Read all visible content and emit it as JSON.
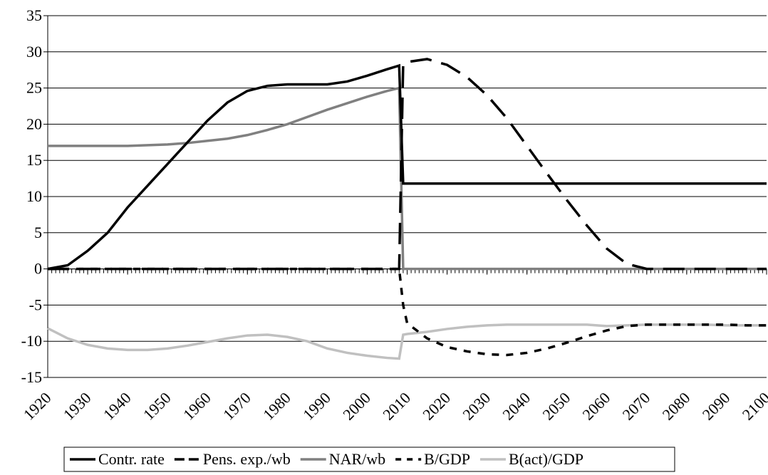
{
  "chart_data": {
    "type": "line",
    "x": [
      1920,
      1925,
      1930,
      1935,
      1940,
      1945,
      1950,
      1955,
      1960,
      1965,
      1970,
      1975,
      1980,
      1985,
      1990,
      1995,
      2000,
      2005,
      2008,
      2009,
      2010,
      2015,
      2020,
      2025,
      2030,
      2035,
      2040,
      2045,
      2050,
      2055,
      2060,
      2065,
      2070,
      2075,
      2080,
      2085,
      2090,
      2095,
      2100
    ],
    "series": [
      {
        "name": "Contr. rate",
        "color": "#000000",
        "line_style": "solid",
        "values": [
          0,
          0.5,
          2.5,
          5,
          8.5,
          11.5,
          14.5,
          17.5,
          20.5,
          23,
          24.6,
          25.3,
          25.5,
          25.5,
          25.5,
          25.9,
          26.7,
          27.6,
          28.1,
          11.8,
          11.8,
          11.8,
          11.8,
          11.8,
          11.8,
          11.8,
          11.8,
          11.8,
          11.8,
          11.8,
          11.8,
          11.8,
          11.8,
          11.8,
          11.8,
          11.8,
          11.8,
          11.8,
          11.8
        ]
      },
      {
        "name": "Pens. exp./wb",
        "color": "#000000",
        "line_style": "long-dash",
        "values": [
          0,
          0,
          0,
          0,
          0,
          0,
          0,
          0,
          0,
          0,
          0,
          0,
          0,
          0,
          0,
          0,
          0,
          0,
          0,
          28.3,
          28.6,
          29,
          28.2,
          26.5,
          24,
          20.8,
          17,
          13.2,
          9.5,
          6,
          2.8,
          0.7,
          0,
          0,
          0,
          0,
          0,
          0,
          0
        ]
      },
      {
        "name": "NAR/wb",
        "color": "#808080",
        "line_style": "solid",
        "values": [
          17,
          17,
          17,
          17,
          17,
          17.1,
          17.2,
          17.4,
          17.7,
          18,
          18.5,
          19.2,
          20,
          21,
          22,
          22.9,
          23.8,
          24.6,
          25,
          0,
          0,
          0,
          0,
          0,
          0,
          0,
          0,
          0,
          0,
          0,
          0,
          0,
          0,
          0,
          0,
          0,
          0,
          0,
          0
        ]
      },
      {
        "name": "B/GDP",
        "color": "#000000",
        "line_style": "short-dash",
        "values": [
          0,
          0,
          0,
          0,
          0,
          0,
          0,
          0,
          0,
          0,
          0,
          0,
          0,
          0,
          0,
          0,
          0,
          0,
          0,
          -5,
          -7.5,
          -9.6,
          -10.8,
          -11.4,
          -11.8,
          -11.9,
          -11.6,
          -11,
          -10.2,
          -9.3,
          -8.5,
          -7.9,
          -7.7,
          -7.7,
          -7.7,
          -7.7,
          -7.7,
          -7.8,
          -7.8
        ]
      },
      {
        "name": "B(act)/GDP",
        "color": "#c0c0c0",
        "line_style": "solid",
        "values": [
          -8.2,
          -9.6,
          -10.5,
          -11,
          -11.2,
          -11.2,
          -11,
          -10.6,
          -10.1,
          -9.6,
          -9.2,
          -9.1,
          -9.4,
          -10,
          -11,
          -11.6,
          -12,
          -12.3,
          -12.4,
          -9.1,
          -9,
          -8.7,
          -8.3,
          -8,
          -7.8,
          -7.7,
          -7.7,
          -7.7,
          -7.7,
          -7.7,
          -7.9,
          -7.8,
          -7.7,
          -7.7,
          -7.7,
          -7.7,
          -7.8,
          -7.8,
          -7.8
        ]
      }
    ],
    "xlim": [
      1920,
      2100
    ],
    "xticks": [
      1920,
      1930,
      1940,
      1950,
      1960,
      1970,
      1980,
      1990,
      2000,
      2010,
      2020,
      2030,
      2040,
      2050,
      2060,
      2070,
      2080,
      2090,
      2100
    ],
    "ylim": [
      -15,
      35
    ],
    "yticks": [
      -15,
      -10,
      -5,
      0,
      5,
      10,
      15,
      20,
      25,
      30,
      35
    ],
    "grid": true,
    "legend": "bottom"
  }
}
